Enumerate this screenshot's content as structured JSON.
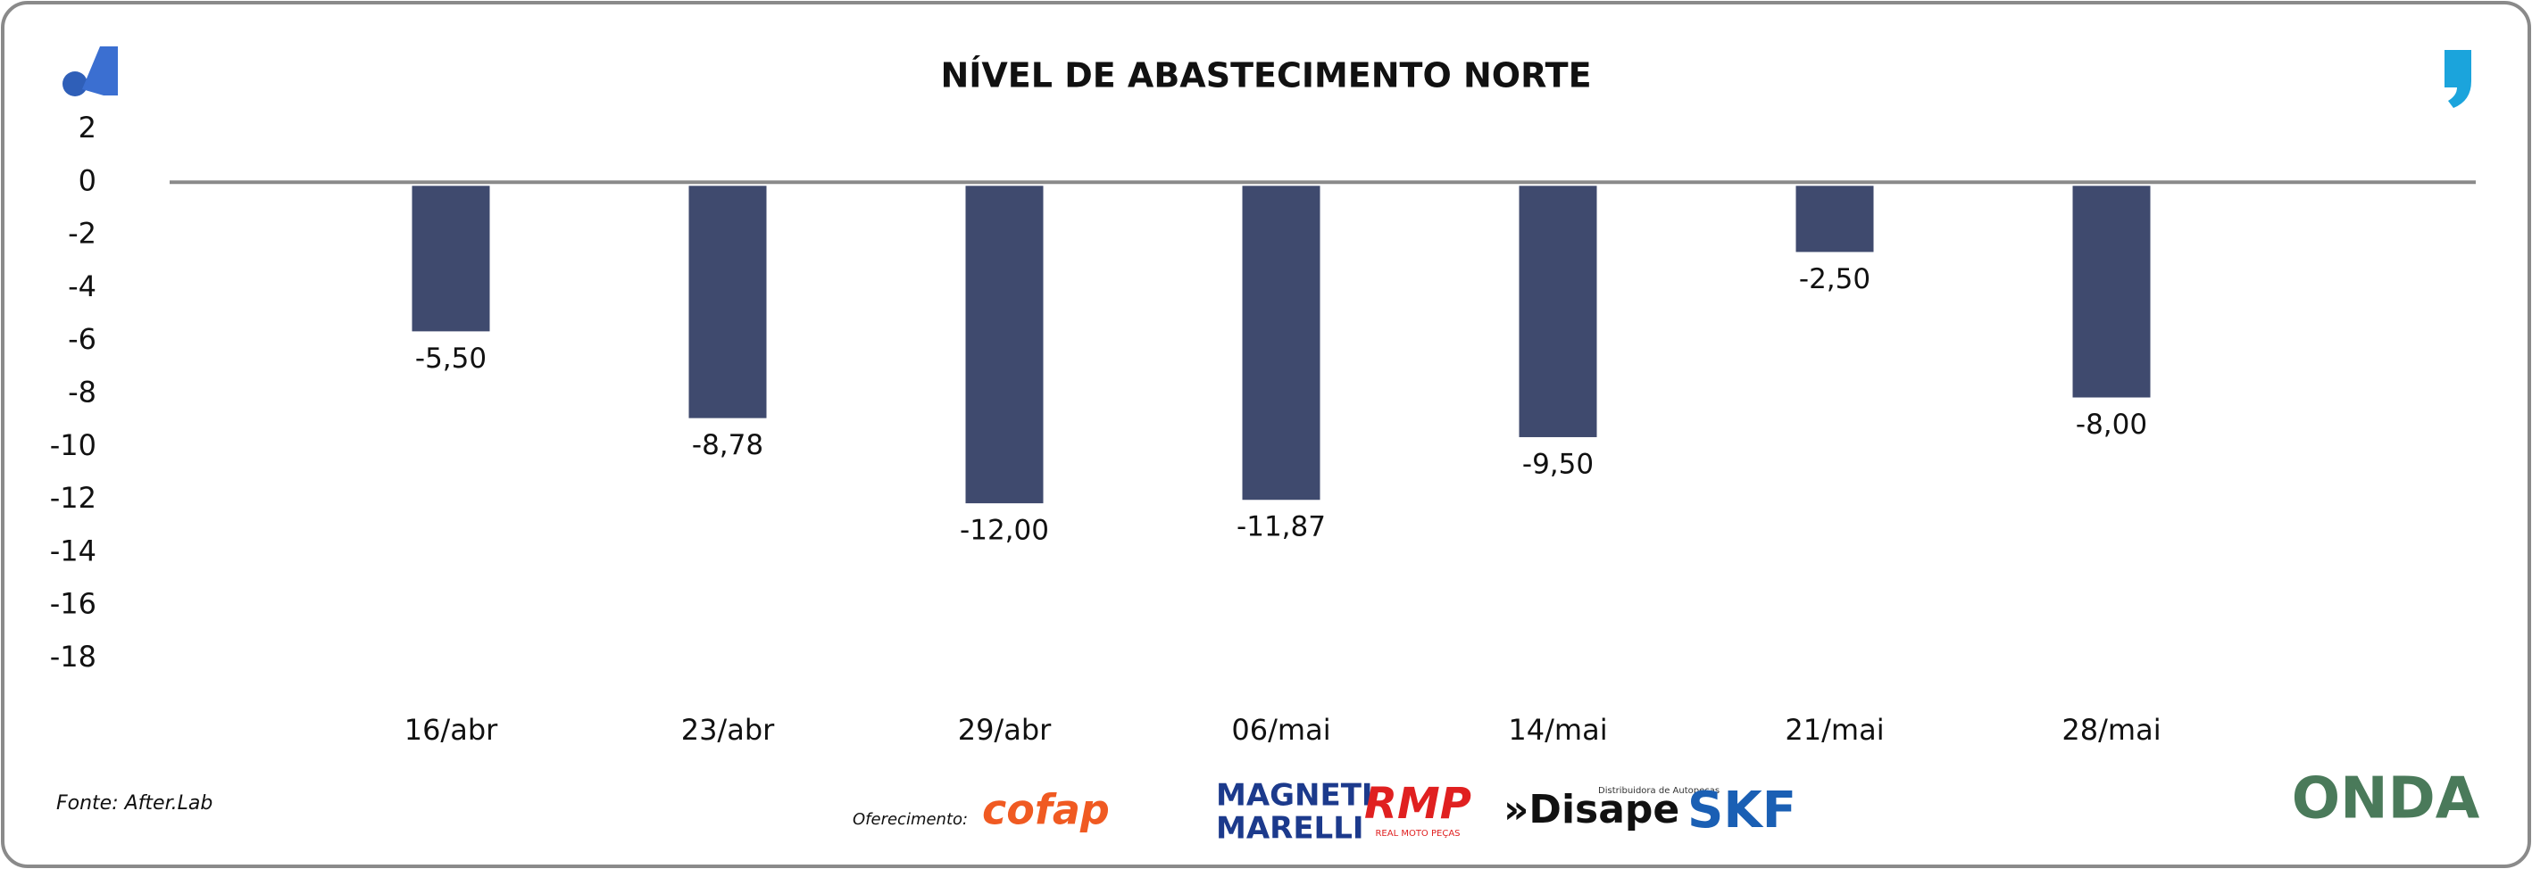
{
  "chart_data": {
    "type": "bar",
    "title": "NÍVEL DE ABASTECIMENTO NORTE",
    "categories": [
      "16/abr",
      "23/abr",
      "29/abr",
      "06/mai",
      "14/mai",
      "21/mai",
      "28/mai"
    ],
    "values": [
      -5.5,
      -8.78,
      -12,
      -11.87,
      -9.5,
      -2.5,
      -8
    ],
    "value_labels": [
      "-5,50",
      "-8,78",
      "-12,00",
      "-11,87",
      "-9,50",
      "-2,50",
      "-8,00"
    ],
    "color": "#3f4a6e",
    "ylim": [
      -18,
      2
    ],
    "yticks": [
      2,
      0,
      -2,
      -4,
      -6,
      -8,
      -10,
      -12,
      -14,
      -16,
      -18
    ],
    "grid": false
  },
  "footer": {
    "source": "Fonte: After.Lab",
    "sponsor_label": "Oferecimento:",
    "sponsors": [
      {
        "name": "cofap"
      },
      {
        "name": "MAGNETI",
        "tagline": "MARELLI"
      },
      {
        "name": "RMP",
        "tagline": "REAL MOTO PEÇAS"
      },
      {
        "name": "»Disape",
        "tagline": "Distribuidora de Autopeças"
      },
      {
        "name": "SKF"
      }
    ],
    "brand": "ONDA"
  }
}
